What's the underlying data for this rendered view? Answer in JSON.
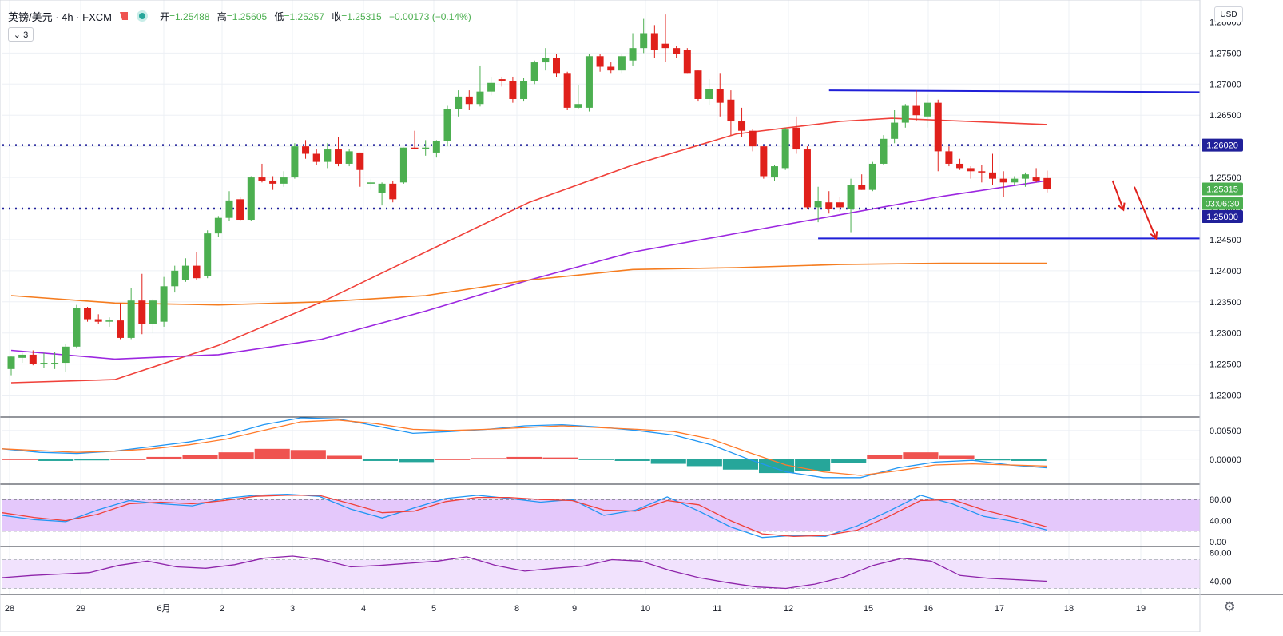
{
  "header": {
    "symbol": "英镑/美元 · 4h · FXCM",
    "open_label": "开",
    "open_value": "=1.25488",
    "high_label": "高",
    "high_value": "=1.25605",
    "low_label": "低",
    "low_value": "=1.25257",
    "close_label": "收",
    "close_value": "=1.25315",
    "change": "−0.00173 (−0.14%)"
  },
  "collapse_label": "⌄ 3",
  "currency_label": "USD",
  "icons": {
    "flag": "flag-icon",
    "status": "status-dot-icon",
    "settings": "gear-icon"
  },
  "colors": {
    "up_candle": "#4caf50",
    "down_candle": "#e0201b",
    "ma_red": "#f0413a",
    "ma_purple": "#9c27e0",
    "ma_orange": "#f57c1f",
    "hline_blue": "#1f1fd8",
    "dotted_navy": "#20209a",
    "macd_blue": "#2196f3",
    "macd_orange": "#ff7a2a",
    "hist_pos": "#ef5350",
    "hist_neg": "#26a69a",
    "stoch_band": "#e4c8fb",
    "rsi_band": "#f1e2fd"
  },
  "chart_data": [
    {
      "type": "candlestick",
      "pane": "price",
      "ylim": [
        1.2175,
        1.2825
      ],
      "y_ticks": [
        "1.28000",
        "1.27500",
        "1.27000",
        "1.26500",
        "1.26000",
        "1.25500",
        "1.25000",
        "1.24500",
        "1.24000",
        "1.23500",
        "1.23000",
        "1.22500",
        "1.22000"
      ],
      "x_tick_labels": [
        "28",
        "29",
        "6月",
        "2",
        "3",
        "4",
        "5",
        "8",
        "9",
        "10",
        "11",
        "12",
        "15",
        "16",
        "17",
        "18",
        "19"
      ],
      "price_labels": [
        "1.26020",
        "1.25315",
        "03:06:30",
        "1.25000"
      ],
      "candles": [
        [
          1.2242,
          1.2262,
          1.2232,
          1.2262
        ],
        [
          1.226,
          1.2268,
          1.2252,
          1.2265
        ],
        [
          1.2265,
          1.2272,
          1.2248,
          1.225
        ],
        [
          1.225,
          1.2268,
          1.2244,
          1.2252
        ],
        [
          1.2252,
          1.227,
          1.2242,
          1.2252
        ],
        [
          1.2252,
          1.2282,
          1.2238,
          1.2278
        ],
        [
          1.2278,
          1.2345,
          1.2275,
          1.234
        ],
        [
          1.234,
          1.2342,
          1.2318,
          1.2322
        ],
        [
          1.2322,
          1.233,
          1.2314,
          1.2318
        ],
        [
          1.2318,
          1.2325,
          1.231,
          1.232
        ],
        [
          1.232,
          1.2348,
          1.229,
          1.2292
        ],
        [
          1.2292,
          1.2372,
          1.229,
          1.2352
        ],
        [
          1.2352,
          1.2395,
          1.2298,
          1.2315
        ],
        [
          1.2315,
          1.2355,
          1.23,
          1.2352
        ],
        [
          1.2318,
          1.239,
          1.231,
          1.2375
        ],
        [
          1.2375,
          1.2408,
          1.2365,
          1.24
        ],
        [
          1.2385,
          1.242,
          1.2382,
          1.2408
        ],
        [
          1.2408,
          1.243,
          1.2385,
          1.2388
        ],
        [
          1.2392,
          1.2465,
          1.2388,
          1.246
        ],
        [
          1.246,
          1.2488,
          1.2455,
          1.2485
        ],
        [
          1.2485,
          1.2528,
          1.248,
          1.2513
        ],
        [
          1.2515,
          1.2518,
          1.248,
          1.2482
        ],
        [
          1.2482,
          1.2552,
          1.248,
          1.255
        ],
        [
          1.255,
          1.2572,
          1.2542,
          1.2545
        ],
        [
          1.2545,
          1.2552,
          1.253,
          1.254
        ],
        [
          1.254,
          1.256,
          1.2535,
          1.255
        ],
        [
          1.255,
          1.2605,
          1.2548,
          1.26
        ],
        [
          1.26,
          1.261,
          1.258,
          1.2588
        ],
        [
          1.2588,
          1.2595,
          1.257,
          1.2575
        ],
        [
          1.2575,
          1.2605,
          1.2565,
          1.2595
        ],
        [
          1.2595,
          1.2615,
          1.2568,
          1.2572
        ],
        [
          1.2572,
          1.2595,
          1.2568,
          1.2592
        ],
        [
          1.259,
          1.259,
          1.2535,
          1.2562
        ],
        [
          1.254,
          1.2548,
          1.253,
          1.2542
        ],
        [
          1.2525,
          1.2542,
          1.2505,
          1.254
        ],
        [
          1.254,
          1.2545,
          1.251,
          1.2515
        ],
        [
          1.2542,
          1.2598,
          1.254,
          1.2598
        ],
        [
          1.2598,
          1.2625,
          1.2595,
          1.2596
        ],
        [
          1.2596,
          1.261,
          1.2585,
          1.2598
        ],
        [
          1.259,
          1.261,
          1.2582,
          1.2608
        ],
        [
          1.2608,
          1.2665,
          1.26,
          1.266
        ],
        [
          1.266,
          1.269,
          1.2648,
          1.268
        ],
        [
          1.268,
          1.269,
          1.2658,
          1.2668
        ],
        [
          1.2668,
          1.273,
          1.2664,
          1.2688
        ],
        [
          1.2688,
          1.2712,
          1.2682,
          1.2702
        ],
        [
          1.2708,
          1.2712,
          1.2696,
          1.2705
        ],
        [
          1.2705,
          1.2712,
          1.267,
          1.2676
        ],
        [
          1.2676,
          1.271,
          1.2672,
          1.2705
        ],
        [
          1.2705,
          1.2738,
          1.27,
          1.2735
        ],
        [
          1.2735,
          1.2758,
          1.2722,
          1.2742
        ],
        [
          1.2742,
          1.2748,
          1.2712,
          1.2718
        ],
        [
          1.2718,
          1.272,
          1.2658,
          1.2662
        ],
        [
          1.2662,
          1.2698,
          1.266,
          1.2668
        ],
        [
          1.2662,
          1.2748,
          1.2656,
          1.2745
        ],
        [
          1.2745,
          1.2748,
          1.272,
          1.2728
        ],
        [
          1.2728,
          1.2735,
          1.2718,
          1.2722
        ],
        [
          1.2722,
          1.2748,
          1.2718,
          1.2745
        ],
        [
          1.2738,
          1.2782,
          1.273,
          1.2758
        ],
        [
          1.2758,
          1.2805,
          1.275,
          1.2782
        ],
        [
          1.2782,
          1.2795,
          1.2742,
          1.2755
        ],
        [
          1.2765,
          1.2812,
          1.2735,
          1.2758
        ],
        [
          1.2758,
          1.2762,
          1.2742,
          1.2748
        ],
        [
          1.2755,
          1.2758,
          1.2718,
          1.2718
        ],
        [
          1.2722,
          1.2722,
          1.2672,
          1.2676
        ],
        [
          1.2676,
          1.2708,
          1.2666,
          1.2692
        ],
        [
          1.2692,
          1.2718,
          1.2648,
          1.267
        ],
        [
          1.2675,
          1.269,
          1.2618,
          1.264
        ],
        [
          1.264,
          1.2662,
          1.2615,
          1.2625
        ],
        [
          1.2625,
          1.2628,
          1.2592,
          1.26
        ],
        [
          1.26,
          1.26,
          1.2548,
          1.2552
        ],
        [
          1.255,
          1.257,
          1.2545,
          1.2568
        ],
        [
          1.2565,
          1.263,
          1.2562,
          1.2627
        ],
        [
          1.263,
          1.2648,
          1.2588,
          1.2595
        ],
        [
          1.2595,
          1.26,
          1.25,
          1.2502
        ],
        [
          1.2502,
          1.2535,
          1.2478,
          1.2512
        ],
        [
          1.251,
          1.2528,
          1.2492,
          1.25
        ],
        [
          1.251,
          1.2518,
          1.2495,
          1.2502
        ],
        [
          1.25,
          1.2548,
          1.2462,
          1.2538
        ],
        [
          1.2538,
          1.2555,
          1.253,
          1.253
        ],
        [
          1.253,
          1.2575,
          1.2528,
          1.2572
        ],
        [
          1.2572,
          1.2618,
          1.257,
          1.2612
        ],
        [
          1.2612,
          1.2658,
          1.2605,
          1.2638
        ],
        [
          1.2638,
          1.2668,
          1.263,
          1.2665
        ],
        [
          1.2665,
          1.269,
          1.264,
          1.265
        ],
        [
          1.2648,
          1.2683,
          1.263,
          1.267
        ],
        [
          1.267,
          1.2675,
          1.256,
          1.2592
        ],
        [
          1.2592,
          1.26,
          1.2568,
          1.2572
        ],
        [
          1.2572,
          1.258,
          1.2562,
          1.2565
        ],
        [
          1.2565,
          1.2568,
          1.2548,
          1.256
        ],
        [
          1.256,
          1.257,
          1.2542,
          1.2558
        ],
        [
          1.2558,
          1.2588,
          1.2538,
          1.2548
        ],
        [
          1.2548,
          1.256,
          1.2518,
          1.2542
        ],
        [
          1.2542,
          1.2552,
          1.2538,
          1.2548
        ],
        [
          1.2548,
          1.2558,
          1.2535,
          1.2555
        ],
        [
          1.255,
          1.2565,
          1.2542,
          1.2545
        ],
        [
          1.2549,
          1.2561,
          1.2526,
          1.2532
        ]
      ],
      "overlays": [
        {
          "color": "#f0413a",
          "points": [
            [
              0,
              1.222
            ],
            [
              10,
              1.2225
            ],
            [
              20,
              1.228
            ],
            [
              30,
              1.235
            ],
            [
              40,
              1.243
            ],
            [
              50,
              1.251
            ],
            [
              60,
              1.257
            ],
            [
              70,
              1.262
            ],
            [
              80,
              1.264
            ],
            [
              85,
              1.2645
            ],
            [
              100,
              1.2635
            ]
          ]
        },
        {
          "color": "#9c27e0",
          "points": [
            [
              0,
              1.2272
            ],
            [
              10,
              1.2258
            ],
            [
              20,
              1.2265
            ],
            [
              30,
              1.229
            ],
            [
              40,
              1.2335
            ],
            [
              50,
              1.2385
            ],
            [
              60,
              1.243
            ],
            [
              70,
              1.246
            ],
            [
              80,
              1.249
            ],
            [
              90,
              1.252
            ],
            [
              100,
              1.2545
            ]
          ]
        },
        {
          "color": "#f57c1f",
          "points": [
            [
              0,
              1.236
            ],
            [
              10,
              1.2348
            ],
            [
              20,
              1.2345
            ],
            [
              30,
              1.235
            ],
            [
              40,
              1.236
            ],
            [
              50,
              1.2385
            ],
            [
              60,
              1.2402
            ],
            [
              70,
              1.2405
            ],
            [
              80,
              1.241
            ],
            [
              90,
              1.2412
            ],
            [
              100,
              1.2412
            ]
          ]
        }
      ],
      "horizontal_lines": [
        {
          "style": "dotted",
          "color": "#20209a",
          "price": 1.2602
        },
        {
          "style": "dotted",
          "color": "#20209a",
          "price": 1.25
        },
        {
          "style": "dotted",
          "color": "#4caf50",
          "price": 1.25315
        },
        {
          "style": "solid",
          "color": "#1f1fd8",
          "from_bar": 75,
          "to_price": 1.2687,
          "price": 1.269
        },
        {
          "style": "solid",
          "color": "#1f1fd8",
          "from_bar": 74,
          "price": 1.2452
        }
      ],
      "projection_arrows": [
        {
          "bar_from": 101,
          "from": 1.2545,
          "bar_to": 102,
          "to": 1.2498
        },
        {
          "bar_from": 103,
          "from": 1.2535,
          "bar_to": 105,
          "to": 1.2452
        }
      ]
    },
    {
      "type": "macd",
      "pane": "macd",
      "ylim": [
        -0.0035,
        0.0065
      ],
      "y_ticks": [
        "0.00500",
        "0.00000"
      ],
      "macd_line": [
        0.0018,
        0.0012,
        0.001,
        0.0014,
        0.0022,
        0.003,
        0.0042,
        0.006,
        0.0072,
        0.007,
        0.0058,
        0.0045,
        0.0048,
        0.0052,
        0.0058,
        0.006,
        0.0056,
        0.005,
        0.0042,
        0.0025,
        0.0,
        -0.0022,
        -0.0032,
        -0.0032,
        -0.0015,
        -0.0005,
        -0.0002,
        -0.001,
        -0.0015
      ],
      "signal_line": [
        0.0018,
        0.0015,
        0.0012,
        0.0014,
        0.0018,
        0.0025,
        0.0035,
        0.005,
        0.0065,
        0.0068,
        0.0062,
        0.0052,
        0.005,
        0.0052,
        0.0055,
        0.0058,
        0.0055,
        0.0052,
        0.0048,
        0.0035,
        0.0012,
        -0.001,
        -0.0022,
        -0.0028,
        -0.002,
        -0.001,
        -0.0008,
        -0.001,
        -0.0012
      ],
      "histogram": [
        0.0,
        -0.0003,
        -0.0002,
        0.0,
        0.0004,
        0.0008,
        0.0012,
        0.0018,
        0.0016,
        0.0006,
        -0.0003,
        -0.0005,
        0.0,
        0.0002,
        0.0004,
        0.0003,
        -0.0001,
        -0.0003,
        -0.0008,
        -0.0012,
        -0.0018,
        -0.0024,
        -0.002,
        -0.0006,
        0.0008,
        0.0012,
        0.0006,
        -0.0002,
        -0.0003
      ]
    },
    {
      "type": "stochastic",
      "pane": "stoch",
      "ylim": [
        0,
        100
      ],
      "y_ticks": [
        "80.00",
        "40.00",
        "0.00"
      ],
      "band": [
        20,
        80
      ],
      "k_line": [
        50,
        42,
        38,
        60,
        78,
        72,
        68,
        82,
        88,
        90,
        86,
        62,
        45,
        64,
        82,
        88,
        82,
        75,
        80,
        50,
        60,
        85,
        58,
        28,
        8,
        12,
        10,
        30,
        58,
        88,
        72,
        48,
        38,
        22
      ],
      "d_line": [
        55,
        46,
        40,
        52,
        72,
        75,
        72,
        78,
        86,
        88,
        88,
        72,
        55,
        58,
        76,
        84,
        84,
        80,
        78,
        60,
        58,
        78,
        70,
        40,
        15,
        10,
        12,
        22,
        48,
        78,
        80,
        60,
        45,
        28
      ]
    },
    {
      "type": "rsi",
      "pane": "rsi",
      "ylim": [
        25,
        85
      ],
      "y_ticks": [
        "80.00",
        "40.00"
      ],
      "band": [
        30,
        70
      ],
      "line": [
        45,
        48,
        50,
        52,
        62,
        68,
        60,
        58,
        63,
        72,
        75,
        70,
        60,
        62,
        65,
        68,
        74,
        62,
        54,
        58,
        61,
        70,
        68,
        55,
        45,
        38,
        32,
        30,
        36,
        46,
        62,
        72,
        68,
        48,
        44,
        42,
        40
      ]
    }
  ]
}
